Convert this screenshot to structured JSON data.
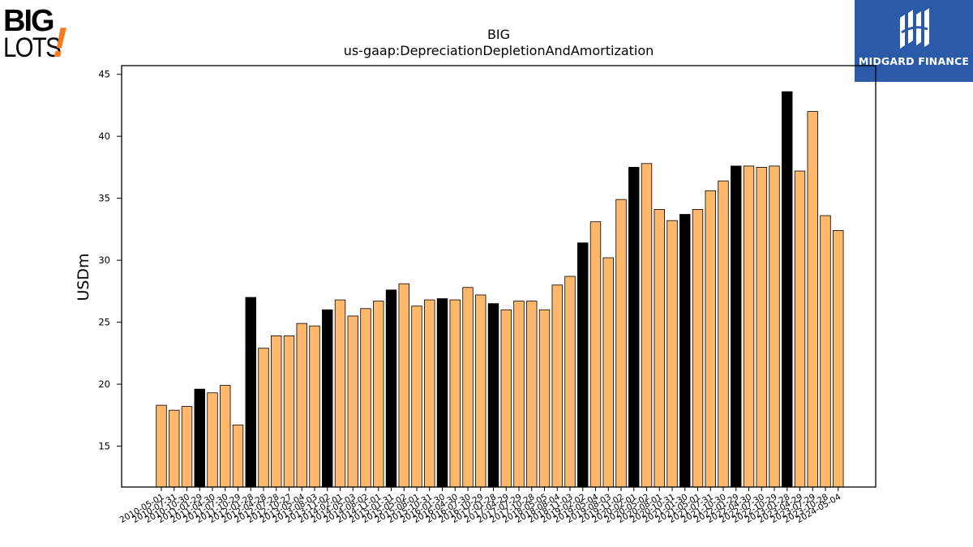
{
  "logos": {
    "left_line1": "BIG",
    "left_line2": "LOTS",
    "left_mark": "!",
    "right_text": "MIDGARD FINANCE"
  },
  "colors": {
    "bar_fill": "#ffb86b",
    "bar_highlight": "#000000",
    "bar_edge": "#000000",
    "logo_orange": "#f47b20",
    "logo_blue": "#2b5aa8"
  },
  "chart_data": {
    "type": "bar",
    "title": "BIG",
    "subtitle": "us-gaap:DepreciationDepletionAndAmortization",
    "xlabel": "",
    "ylabel": "USDm",
    "ylim": [
      11.7,
      45.7
    ],
    "yticks": [
      15,
      20,
      25,
      30,
      35,
      40,
      45
    ],
    "grid": false,
    "categories": [
      "2010-05-01",
      "2010-07-31",
      "2010-10-30",
      "2011-01-29",
      "2011-04-30",
      "2011-07-30",
      "2011-10-29",
      "2012-01-28",
      "2012-04-28",
      "2012-07-28",
      "2012-10-27",
      "2013-05-04",
      "2013-08-03",
      "2013-11-02",
      "2014-02-01",
      "2014-05-03",
      "2014-08-02",
      "2014-11-01",
      "2015-01-31",
      "2015-05-02",
      "2015-08-01",
      "2015-10-31",
      "2016-01-30",
      "2016-04-30",
      "2016-07-30",
      "2016-10-29",
      "2017-01-28",
      "2017-04-29",
      "2017-07-29",
      "2017-10-28",
      "2018-05-05",
      "2018-08-04",
      "2018-11-03",
      "2019-02-02",
      "2019-05-04",
      "2019-08-03",
      "2019-11-02",
      "2020-02-01",
      "2020-05-02",
      "2020-08-01",
      "2020-10-31",
      "2021-01-30",
      "2021-05-01",
      "2021-07-31",
      "2021-10-30",
      "2022-01-29",
      "2022-04-30",
      "2022-07-30",
      "2022-10-29",
      "2023-01-28",
      "2023-04-29",
      "2023-07-29",
      "2023-10-28",
      "2024-05-04"
    ],
    "xtick_labels": [
      "2010-05-01",
      "2010-07-31",
      "2010-10-30",
      "2011-01-29",
      "2011-04-30",
      "2011-07-30",
      "2011-10-29",
      "2012-01-28",
      "2012-04-28",
      "2012-07-28",
      "2012-10-27",
      "2013-05-04",
      "2013-08-03",
      "2013-11-02",
      "2014-02-01",
      "2014-05-03",
      "2014-08-02",
      "2014-11-01",
      "2015-01-31",
      "2015-05-02",
      "2015-08-01",
      "2015-10-31",
      "2016-01-30",
      "2016-04-30",
      "2016-07-30",
      "2016-10-29",
      "2017-01-28",
      "2017-04-29",
      "2017-07-29",
      "2017-10-28",
      "2018-05-05",
      "2018-08-04",
      "2018-11-03",
      "2019-02-02",
      "2019-05-04",
      "2019-08-03",
      "2019-11-02",
      "2020-02-01",
      "2020-05-02",
      "2020-08-01",
      "2020-10-31",
      "2021-01-30",
      "2021-05-01",
      "2021-07-31",
      "2021-10-30",
      "2022-01-29",
      "2022-04-30",
      "2022-07-30",
      "2022-10-29",
      "2023-01-28",
      "2023-04-29",
      "2023-07-29",
      "2023-10-28",
      "2024-05-04"
    ],
    "values": [
      18.3,
      17.9,
      18.2,
      19.6,
      19.3,
      19.9,
      16.7,
      27.0,
      22.9,
      23.9,
      23.9,
      24.9,
      24.7,
      26.0,
      26.8,
      25.5,
      26.1,
      26.7,
      27.6,
      28.1,
      26.3,
      26.8,
      26.9,
      26.8,
      27.8,
      27.2,
      26.5,
      26.0,
      26.7,
      26.7,
      26.0,
      28.0,
      28.7,
      31.4,
      33.1,
      30.2,
      34.9,
      37.5,
      37.8,
      34.1,
      33.2,
      33.7,
      34.1,
      35.6,
      36.4,
      37.6,
      37.6,
      37.5,
      37.6,
      43.6,
      37.2,
      42.0,
      33.6,
      32.4
    ],
    "highlight_indices": [
      3,
      7,
      13,
      18,
      22,
      26,
      33,
      37,
      41,
      45,
      49
    ]
  }
}
